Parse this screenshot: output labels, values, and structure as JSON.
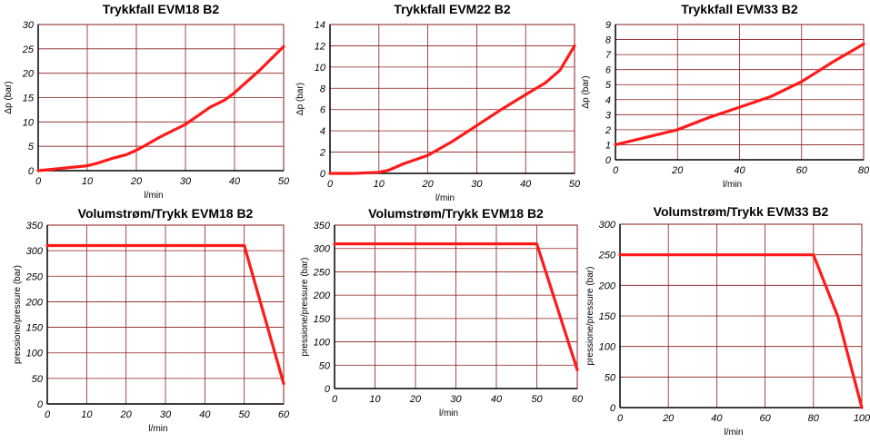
{
  "colors": {
    "series": "#ff1a1a",
    "grid": "#8b1a1a"
  },
  "chart_data": [
    {
      "type": "line",
      "title": "Trykkfall EVM18 B2",
      "xlabel": "l/min",
      "ylabel": "Δp (bar)",
      "xlim": [
        0,
        50
      ],
      "ylim": [
        0,
        30
      ],
      "xticks": [
        0,
        10,
        20,
        30,
        40,
        50
      ],
      "yticks": [
        0,
        5,
        10,
        15,
        20,
        25,
        30
      ],
      "grid": true,
      "series": [
        {
          "x": [
            0,
            5,
            10,
            12,
            15,
            18,
            20,
            22,
            25,
            30,
            35,
            38,
            40,
            45,
            50
          ],
          "y": [
            0,
            0.5,
            1,
            1.5,
            2.5,
            3.3,
            4.2,
            5.3,
            7,
            9.5,
            13,
            14.5,
            16,
            20.5,
            25.5
          ]
        }
      ]
    },
    {
      "type": "line",
      "title": "Trykkfall EVM22 B2",
      "xlabel": "l/min",
      "ylabel": "Δp (bar)",
      "xlim": [
        0,
        50
      ],
      "ylim": [
        0,
        14
      ],
      "xticks": [
        0,
        10,
        20,
        30,
        40,
        50
      ],
      "yticks": [
        0,
        2,
        4,
        6,
        8,
        10,
        12,
        14
      ],
      "grid": true,
      "series": [
        {
          "x": [
            0,
            5,
            10,
            12,
            15,
            20,
            25,
            30,
            35,
            40,
            44,
            47,
            50
          ],
          "y": [
            0,
            0,
            0.1,
            0.3,
            0.9,
            1.7,
            3,
            4.5,
            6,
            7.4,
            8.5,
            9.7,
            12
          ]
        }
      ]
    },
    {
      "type": "line",
      "title": "Trykkfall EVM33 B2",
      "xlabel": "l/min",
      "ylabel": "Δp (bar)",
      "xlim": [
        0,
        80
      ],
      "ylim": [
        0,
        9
      ],
      "xticks": [
        0,
        20,
        40,
        60,
        80
      ],
      "yticks": [
        0,
        1,
        2,
        3,
        4,
        5,
        6,
        7,
        8,
        9
      ],
      "grid": true,
      "series": [
        {
          "x": [
            0,
            10,
            20,
            30,
            40,
            50,
            60,
            70,
            80
          ],
          "y": [
            1,
            1.5,
            2,
            2.8,
            3.5,
            4.2,
            5.2,
            6.5,
            7.7
          ]
        }
      ]
    },
    {
      "type": "line",
      "title": "Volumstrøm/Trykk EVM18 B2",
      "xlabel": "l/min",
      "ylabel": "pressione/pressure (bar)",
      "xlim": [
        0,
        60
      ],
      "ylim": [
        0,
        350
      ],
      "xticks": [
        0,
        10,
        20,
        30,
        40,
        50,
        60
      ],
      "yticks": [
        0,
        50,
        100,
        150,
        200,
        250,
        300,
        350
      ],
      "grid": true,
      "series": [
        {
          "x": [
            0,
            50,
            60
          ],
          "y": [
            310,
            310,
            40
          ]
        }
      ]
    },
    {
      "type": "line",
      "title": "Volumstrøm/Trykk EVM18 B2",
      "xlabel": "l/min",
      "ylabel": "pressione/pressure (bar)",
      "xlim": [
        0,
        60
      ],
      "ylim": [
        0,
        350
      ],
      "xticks": [
        0,
        10,
        20,
        30,
        40,
        50,
        60
      ],
      "yticks": [
        0,
        50,
        100,
        150,
        200,
        250,
        300,
        350
      ],
      "grid": true,
      "series": [
        {
          "x": [
            0,
            50,
            60
          ],
          "y": [
            310,
            310,
            40
          ]
        }
      ]
    },
    {
      "type": "line",
      "title": "Volumstrøm/Trykk EVM33 B2",
      "xlabel": "l/min",
      "ylabel": "pressione/pressure (bar)",
      "xlim": [
        0,
        100
      ],
      "ylim": [
        0,
        300
      ],
      "xticks": [
        0,
        20,
        40,
        60,
        80,
        100
      ],
      "yticks": [
        0,
        50,
        100,
        150,
        200,
        250,
        300
      ],
      "grid": true,
      "series": [
        {
          "x": [
            0,
            80,
            90,
            100
          ],
          "y": [
            250,
            250,
            150,
            0
          ]
        }
      ]
    }
  ]
}
